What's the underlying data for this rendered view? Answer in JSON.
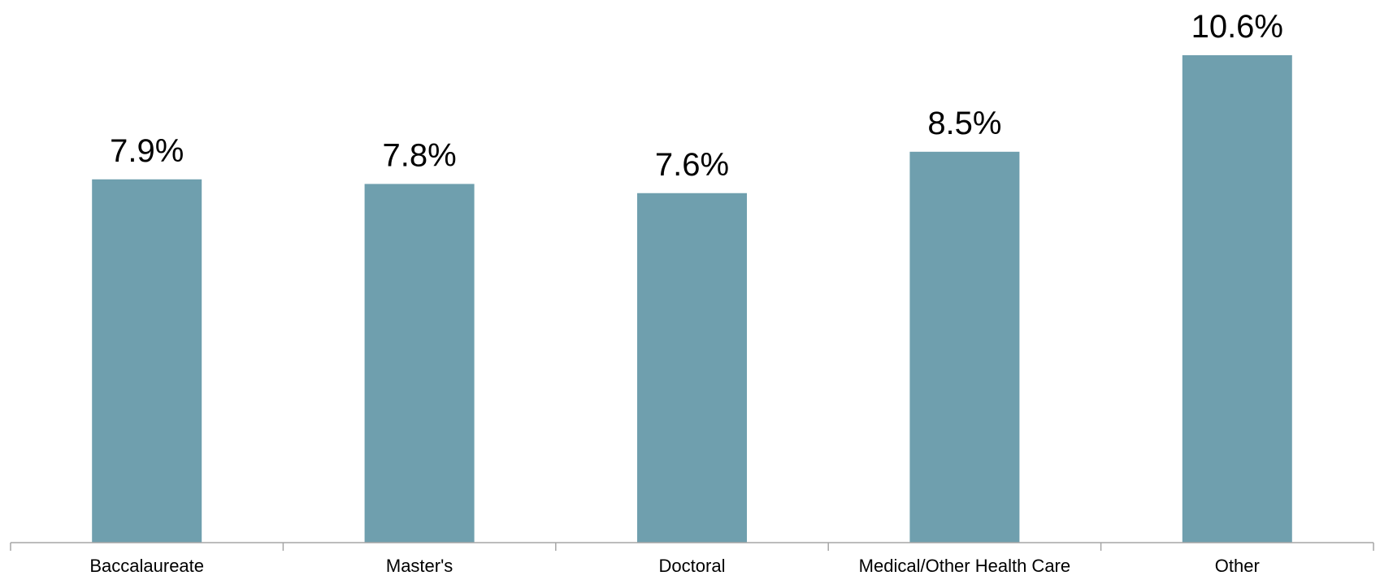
{
  "chart_data": {
    "type": "bar",
    "title": "",
    "xlabel": "",
    "ylabel": "",
    "categories": [
      "Baccalaureate",
      "Master's",
      "Doctoral",
      "Medical/Other Health Care",
      "Other"
    ],
    "values": [
      7.9,
      7.8,
      7.6,
      8.5,
      10.6
    ],
    "value_labels": [
      "7.9%",
      "7.8%",
      "7.6%",
      "8.5%",
      "10.6%"
    ],
    "ylim": [
      0,
      11.8
    ],
    "grid": false,
    "legend": "none",
    "bar_color": "#6f9fae",
    "axis_color": "#a6a6a6"
  }
}
